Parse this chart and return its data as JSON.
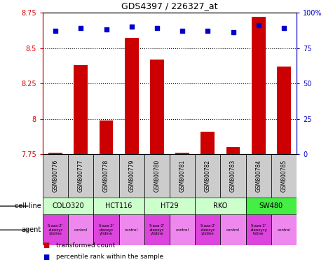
{
  "title": "GDS4397 / 226327_at",
  "samples": [
    "GSM800776",
    "GSM800777",
    "GSM800778",
    "GSM800779",
    "GSM800780",
    "GSM800781",
    "GSM800782",
    "GSM800783",
    "GSM800784",
    "GSM800785"
  ],
  "bar_values": [
    7.76,
    8.38,
    7.99,
    8.57,
    8.42,
    7.76,
    7.91,
    7.8,
    8.72,
    8.37
  ],
  "scatter_values": [
    87,
    89,
    88,
    90,
    89,
    87,
    87,
    86,
    91,
    89
  ],
  "ylim_left": [
    7.75,
    8.75
  ],
  "ylim_right": [
    0,
    100
  ],
  "yticks_left": [
    7.75,
    8.0,
    8.25,
    8.5,
    8.75
  ],
  "ytick_labels_left": [
    "7.75",
    "8",
    "8.25",
    "8.5",
    "8.75"
  ],
  "yticks_right": [
    0,
    25,
    50,
    75,
    100
  ],
  "ytick_labels_right": [
    "0",
    "25",
    "50",
    "75",
    "100%"
  ],
  "bar_color": "#cc0000",
  "scatter_color": "#0000cc",
  "bar_bottom": 7.75,
  "cell_lines": [
    {
      "name": "COLO320",
      "start": 0,
      "end": 2,
      "color": "#ccffcc"
    },
    {
      "name": "HCT116",
      "start": 2,
      "end": 4,
      "color": "#ccffcc"
    },
    {
      "name": "HT29",
      "start": 4,
      "end": 6,
      "color": "#ccffcc"
    },
    {
      "name": "RKO",
      "start": 6,
      "end": 8,
      "color": "#ccffcc"
    },
    {
      "name": "SW480",
      "start": 8,
      "end": 10,
      "color": "#44ee44"
    }
  ],
  "agents": [
    {
      "name": "5-aza-2'\n-deoxyc\nytidine",
      "start": 0,
      "end": 1,
      "color": "#dd44dd"
    },
    {
      "name": "control",
      "start": 1,
      "end": 2,
      "color": "#ee88ee"
    },
    {
      "name": "5-aza-2'\n-deoxyc\nytidine",
      "start": 2,
      "end": 3,
      "color": "#dd44dd"
    },
    {
      "name": "control",
      "start": 3,
      "end": 4,
      "color": "#ee88ee"
    },
    {
      "name": "5-aza-2'\n-deoxyc\nytidine",
      "start": 4,
      "end": 5,
      "color": "#dd44dd"
    },
    {
      "name": "control",
      "start": 5,
      "end": 6,
      "color": "#ee88ee"
    },
    {
      "name": "5-aza-2'\n-deoxyc\nytidine",
      "start": 6,
      "end": 7,
      "color": "#dd44dd"
    },
    {
      "name": "control",
      "start": 7,
      "end": 8,
      "color": "#ee88ee"
    },
    {
      "name": "5-aza-2'\n-deoxycy\ntidine",
      "start": 8,
      "end": 9,
      "color": "#dd44dd"
    },
    {
      "name": "control",
      "start": 9,
      "end": 10,
      "color": "#ee88ee"
    }
  ],
  "gsm_box_color": "#cccccc",
  "background_color": "#ffffff",
  "tick_color_left": "#cc0000",
  "tick_color_right": "#0000cc",
  "dotted_lines": [
    8.0,
    8.25,
    8.5
  ],
  "legend": [
    {
      "color": "#cc0000",
      "label": "transformed count"
    },
    {
      "color": "#0000cc",
      "label": "percentile rank within the sample"
    }
  ]
}
